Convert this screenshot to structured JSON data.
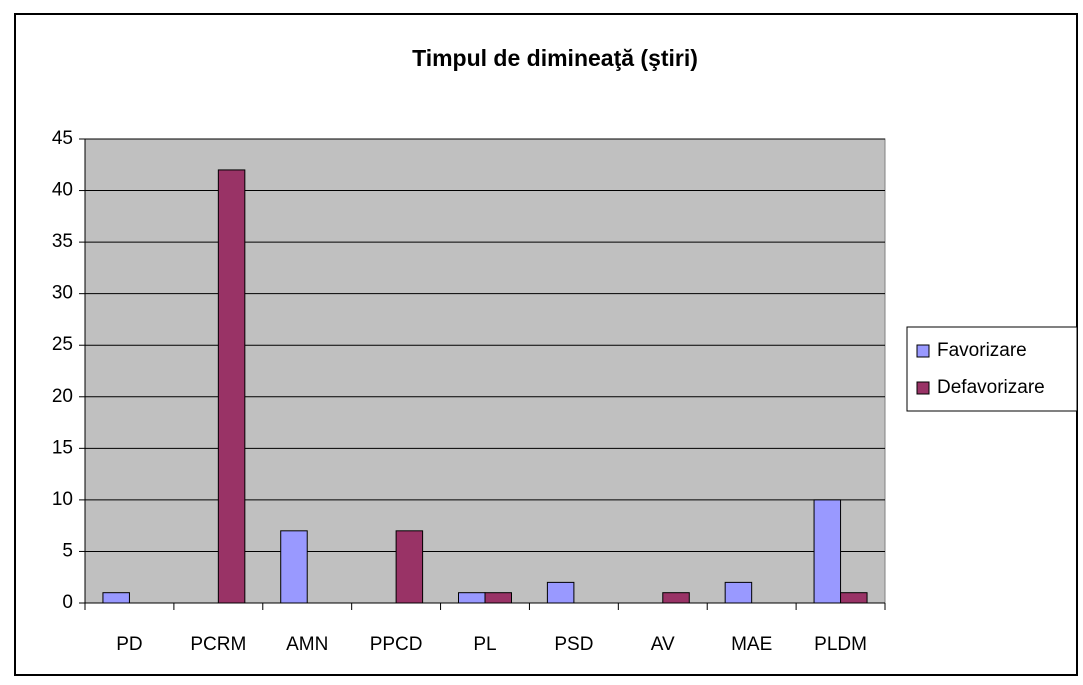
{
  "chart_data": {
    "type": "bar",
    "title": "Timpul de dimineaţă (ştiri)",
    "categories": [
      "PD",
      "PCRM",
      "AMN",
      "PPCD",
      "PL",
      "PSD",
      "AV",
      "MAE",
      "PLDM"
    ],
    "series": [
      {
        "name": "Favorizare",
        "color": "#9999ff",
        "values": [
          1,
          0,
          7,
          0,
          1,
          2,
          0,
          2,
          10
        ]
      },
      {
        "name": "Defavorizare",
        "color": "#993366",
        "values": [
          0,
          42,
          0,
          7,
          1,
          0,
          1,
          0,
          1
        ]
      }
    ],
    "ylim": [
      0,
      45
    ],
    "yticks": [
      0,
      5,
      10,
      15,
      20,
      25,
      30,
      35,
      40,
      45
    ],
    "grid": true,
    "legend": "right"
  }
}
